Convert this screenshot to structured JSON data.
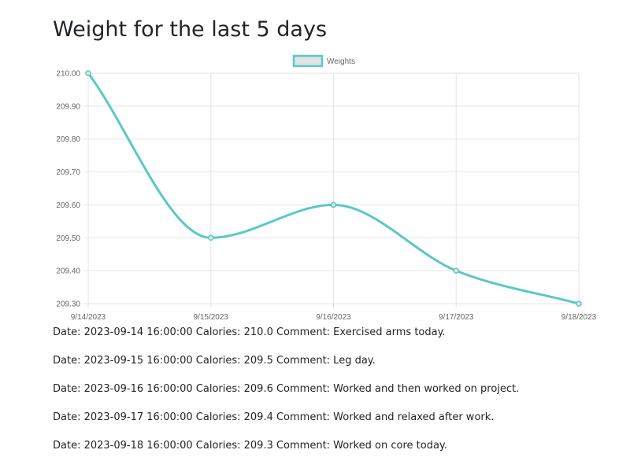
{
  "page": {
    "title": "Weight for the last 5 days"
  },
  "chart_data": {
    "type": "line",
    "title": "",
    "xlabel": "",
    "ylabel": "",
    "categories": [
      "9/14/2023",
      "9/15/2023",
      "9/16/2023",
      "9/17/2023",
      "9/18/2023"
    ],
    "series": [
      {
        "name": "Weights",
        "values": [
          210.0,
          209.5,
          209.6,
          209.4,
          209.3
        ],
        "color": "#5BC8C6"
      }
    ],
    "ylim": [
      209.3,
      210.0
    ],
    "yticks": [
      "210.00",
      "209.90",
      "209.80",
      "209.70",
      "209.60",
      "209.50",
      "209.40",
      "209.30"
    ],
    "grid": true,
    "legend_position": "top-center",
    "smooth": true
  },
  "entries": [
    {
      "text": "Date: 2023-09-14 16:00:00 Calories: 210.0 Comment: Exercised arms today."
    },
    {
      "text": "Date: 2023-09-15 16:00:00 Calories: 209.5 Comment: Leg day."
    },
    {
      "text": "Date: 2023-09-16 16:00:00 Calories: 209.6 Comment: Worked and then worked on project."
    },
    {
      "text": "Date: 2023-09-17 16:00:00 Calories: 209.4 Comment: Worked and relaxed after work."
    },
    {
      "text": "Date: 2023-09-18 16:00:00 Calories: 209.3 Comment: Worked on core today."
    }
  ]
}
